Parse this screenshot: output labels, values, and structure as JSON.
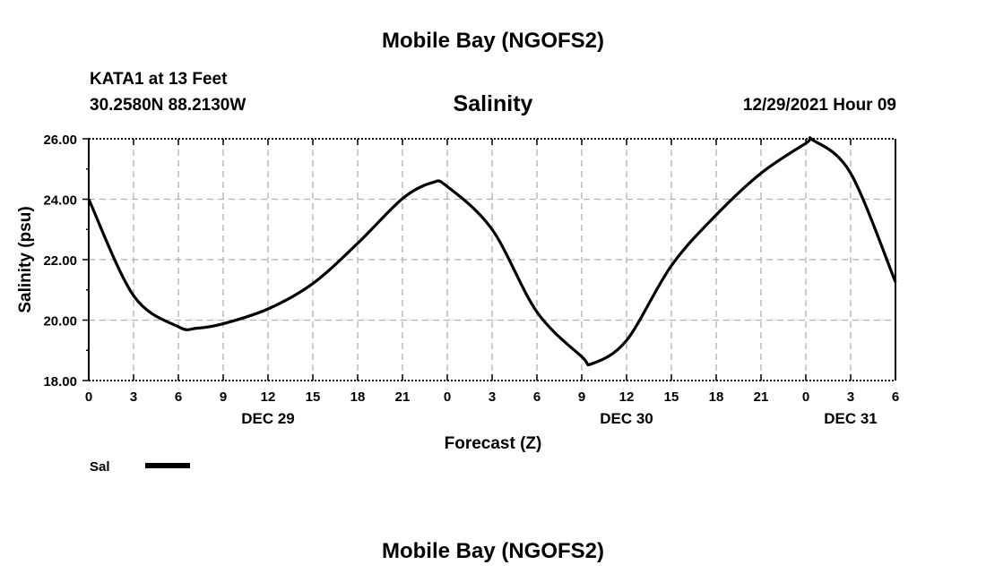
{
  "header": {
    "title": "Mobile Bay (NGOFS2)",
    "station": "KATA1 at 13 Feet",
    "coords": "30.2580N  88.2130W",
    "subtitle": "Salinity",
    "date": "12/29/2021 Hour 09",
    "footer_title": "Mobile Bay (NGOFS2)"
  },
  "chart_data": {
    "type": "line",
    "title": "Salinity",
    "xlabel": "Forecast (Z)",
    "ylabel": "Salinity (psu)",
    "xlim": [
      0,
      54
    ],
    "ylim": [
      18,
      26
    ],
    "grid": true,
    "yticks": [
      "18.00",
      "20.00",
      "22.00",
      "24.00",
      "26.00"
    ],
    "xtick_labels": [
      "0",
      "3",
      "6",
      "9",
      "12",
      "15",
      "18",
      "21",
      "0",
      "3",
      "6",
      "9",
      "12",
      "15",
      "18",
      "21",
      "0",
      "3",
      "6"
    ],
    "date_labels": [
      {
        "hour": 12,
        "label": "DEC 29"
      },
      {
        "hour": 36,
        "label": "DEC 30"
      },
      {
        "hour": 51,
        "label": "DEC 31"
      }
    ],
    "legend": {
      "position": "bottom-left",
      "entries": [
        "Sal"
      ]
    },
    "series": [
      {
        "name": "Sal",
        "color": "#000000",
        "x": [
          0,
          3,
          6,
          7.2,
          9,
          12,
          15,
          18,
          21,
          23,
          24,
          27,
          30,
          33,
          33.7,
          36,
          39,
          42,
          45,
          48,
          48.5,
          51,
          54
        ],
        "y": [
          24.0,
          20.81,
          19.78,
          19.73,
          19.88,
          20.37,
          21.21,
          22.54,
          24.02,
          24.55,
          24.42,
          23.0,
          20.27,
          18.79,
          18.56,
          19.33,
          21.8,
          23.48,
          24.86,
          25.85,
          25.95,
          24.86,
          21.26
        ]
      }
    ]
  }
}
